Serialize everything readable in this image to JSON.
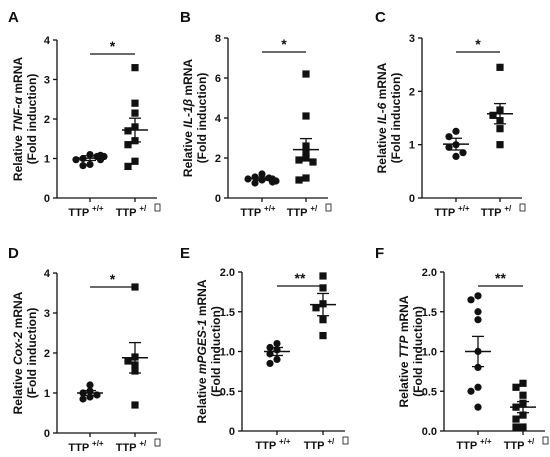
{
  "chart_data": [
    {
      "type": "scatter",
      "panel": "A",
      "ylabel_pre": "Relative ",
      "ylabel_gene": "TNF-α",
      "ylabel_post": " mRNA",
      "ylabel_line2": "(Fold induction)",
      "ylim": [
        0,
        4
      ],
      "yticks": [
        "0",
        "1",
        "2",
        "3",
        "4"
      ],
      "yvals": [
        0,
        1,
        2,
        3,
        4
      ],
      "groups": [
        {
          "name": "TTP",
          "sup": "+/+",
          "marker": "circle",
          "mean": 1.01,
          "sem": 0.06,
          "values": [
            1.1,
            1.0,
            1.05,
            0.97,
            1.05,
            0.85,
            0.82,
            1.08,
            0.97
          ]
        },
        {
          "name": "TTP",
          "sup": "+/",
          "marker": "square",
          "mean": 1.72,
          "sem": 0.3,
          "values": [
            3.3,
            2.4,
            2.15,
            1.8,
            1.7,
            1.45,
            1.35,
            0.93,
            0.8
          ]
        }
      ],
      "significance": "*"
    },
    {
      "type": "scatter",
      "panel": "B",
      "ylabel_pre": "Relative ",
      "ylabel_gene": "IL-1β",
      "ylabel_post": " mRNA",
      "ylabel_line2": "(Fold induction)",
      "ylim": [
        0,
        8
      ],
      "yticks": [
        "0",
        "2",
        "4",
        "6",
        "8"
      ],
      "yvals": [
        0,
        2,
        4,
        6,
        8
      ],
      "groups": [
        {
          "name": "TTP",
          "sup": "+/+",
          "marker": "circle",
          "mean": 0.97,
          "sem": 0.08,
          "values": [
            1.2,
            1.05,
            1.0,
            0.95,
            0.9,
            0.85,
            0.8,
            0.95,
            0.75
          ]
        },
        {
          "name": "TTP",
          "sup": "+/",
          "marker": "square",
          "mean": 2.42,
          "sem": 0.55,
          "values": [
            6.2,
            4.1,
            2.6,
            2.3,
            2.0,
            1.9,
            1.8,
            1.0,
            0.9
          ]
        }
      ],
      "significance": "*"
    },
    {
      "type": "scatter",
      "panel": "C",
      "ylabel_pre": "Relative ",
      "ylabel_gene": "IL-6",
      "ylabel_post": " mRNA",
      "ylabel_line2": "(Fold induction)",
      "ylim": [
        0,
        3
      ],
      "yticks": [
        "0",
        "1",
        "2",
        "3"
      ],
      "yvals": [
        0,
        1,
        2,
        3
      ],
      "groups": [
        {
          "name": "TTP",
          "sup": "+/+",
          "marker": "circle",
          "mean": 1.01,
          "sem": 0.11,
          "values": [
            1.25,
            1.15,
            1.0,
            0.95,
            0.78,
            0.85
          ]
        },
        {
          "name": "TTP",
          "sup": "+/",
          "marker": "square",
          "mean": 1.58,
          "sem": 0.19,
          "values": [
            2.45,
            1.65,
            1.55,
            1.45,
            1.3,
            1.0
          ]
        }
      ],
      "significance": "*"
    },
    {
      "type": "scatter",
      "panel": "D",
      "ylabel_pre": "Relative ",
      "ylabel_gene": "Cox-2",
      "ylabel_post": " mRNA",
      "ylabel_line2": "(Fold induction)",
      "ylim": [
        0,
        4
      ],
      "yticks": [
        "0",
        "1",
        "2",
        "3",
        "4"
      ],
      "yvals": [
        0,
        1,
        2,
        3,
        4
      ],
      "groups": [
        {
          "name": "TTP",
          "sup": "+/+",
          "marker": "circle",
          "mean": 1.0,
          "sem": 0.06,
          "values": [
            1.2,
            1.05,
            1.0,
            0.95,
            0.9,
            0.85
          ]
        },
        {
          "name": "TTP",
          "sup": "+/",
          "marker": "square",
          "mean": 1.88,
          "sem": 0.38,
          "values": [
            3.65,
            1.9,
            1.8,
            1.7,
            1.55,
            0.7
          ]
        }
      ],
      "significance": "*"
    },
    {
      "type": "scatter",
      "panel": "E",
      "ylabel_pre": "Relative ",
      "ylabel_gene": "mPGES-1",
      "ylabel_post": " mRNA",
      "ylabel_line2": "(Fold induction)",
      "ylim": [
        0,
        2.0
      ],
      "yticks": [
        "0",
        "0.5",
        "1.0",
        "1.5",
        "2.0"
      ],
      "yvals": [
        0,
        0.5,
        1.0,
        1.5,
        2.0
      ],
      "groups": [
        {
          "name": "TTP",
          "sup": "+/+",
          "marker": "circle",
          "mean": 1.0,
          "sem": 0.05,
          "values": [
            1.1,
            1.05,
            1.02,
            0.97,
            0.9,
            0.85
          ]
        },
        {
          "name": "TTP",
          "sup": "+/",
          "marker": "square",
          "mean": 1.59,
          "sem": 0.14,
          "values": [
            1.95,
            1.8,
            1.6,
            1.55,
            1.4,
            1.2
          ]
        }
      ],
      "significance": "**"
    },
    {
      "type": "scatter",
      "panel": "F",
      "ylabel_pre": "Relative ",
      "ylabel_gene": "TTP",
      "ylabel_post": " mRNA",
      "ylabel_line2": "(Fold induction)",
      "ylim": [
        0,
        2.0
      ],
      "yticks": [
        "0.0",
        "0.5",
        "1.0",
        "1.5",
        "2.0"
      ],
      "yvals": [
        0,
        0.5,
        1.0,
        1.5,
        2.0
      ],
      "groups": [
        {
          "name": "TTP",
          "sup": "+/+",
          "marker": "circle",
          "mean": 1.0,
          "sem": 0.19,
          "values": [
            1.7,
            1.65,
            1.5,
            1.4,
            1.0,
            0.8,
            0.55,
            0.5,
            0.3
          ]
        },
        {
          "name": "TTP",
          "sup": "+/",
          "marker": "square",
          "mean": 0.3,
          "sem": 0.07,
          "values": [
            0.6,
            0.55,
            0.45,
            0.35,
            0.3,
            0.2,
            0.15,
            0.05,
            0.05
          ]
        }
      ],
      "significance": "**"
    }
  ]
}
